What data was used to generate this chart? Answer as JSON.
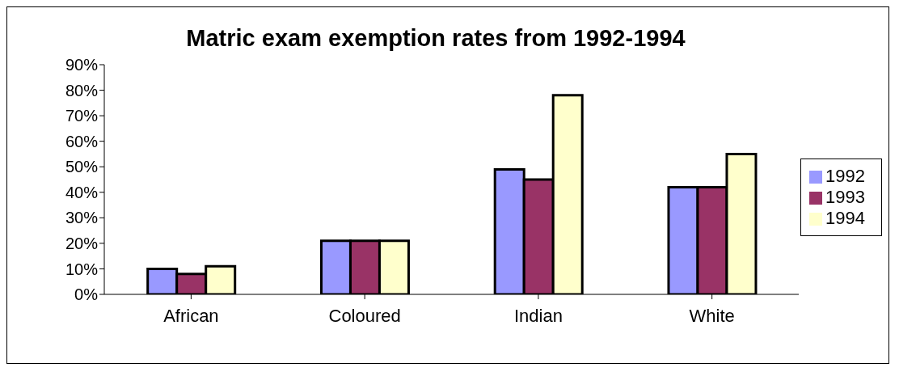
{
  "chart_data": {
    "type": "bar",
    "title": "Matric exam exemption rates from 1992-1994",
    "categories": [
      "African",
      "Coloured",
      "Indian",
      "White"
    ],
    "series": [
      {
        "name": "1992",
        "color": "#9999ff",
        "values": [
          10,
          21,
          49,
          42
        ]
      },
      {
        "name": "1993",
        "color": "#993366",
        "values": [
          8,
          21,
          45,
          42
        ]
      },
      {
        "name": "1994",
        "color": "#ffffcc",
        "values": [
          11,
          21,
          78,
          55
        ]
      }
    ],
    "ylim": [
      0,
      90
    ],
    "yticks": [
      {
        "value": 0,
        "label": "0%"
      },
      {
        "value": 10,
        "label": "10%"
      },
      {
        "value": 20,
        "label": "20%"
      },
      {
        "value": 30,
        "label": "30%"
      },
      {
        "value": 40,
        "label": "40%"
      },
      {
        "value": 50,
        "label": "50%"
      },
      {
        "value": 60,
        "label": "60%"
      },
      {
        "value": 70,
        "label": "70%"
      },
      {
        "value": 80,
        "label": "80%"
      },
      {
        "value": 90,
        "label": "90%"
      }
    ],
    "legend": "right"
  }
}
